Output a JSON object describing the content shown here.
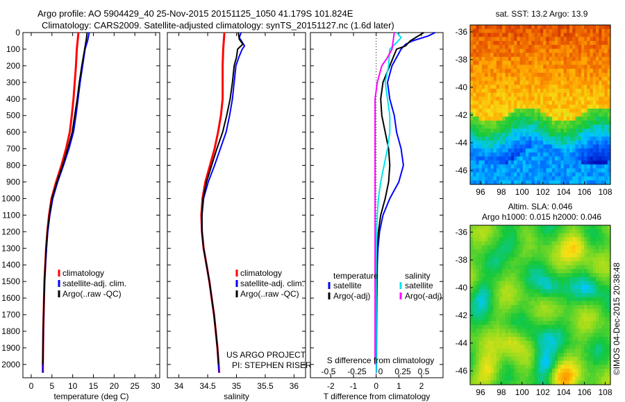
{
  "title": {
    "line1": "Argo profile: AO 5904429_40 25-Nov-2015 20151125_1050 41.179S 101.824E",
    "line2": "Climatology: CARS2009. Satellite-adjusted climatology: synTS_20151127.nc (1.6d later)"
  },
  "colors": {
    "red": "#ff0000",
    "blue": "#0000ff",
    "black": "#000000",
    "cyan": "#00e5ee",
    "magenta": "#ff00ff"
  },
  "chart_data": [
    {
      "type": "line",
      "panel": "temperature",
      "xlabel": "temperature (deg C)",
      "xlim": [
        -2,
        31
      ],
      "xticks": [
        0,
        5,
        10,
        15,
        20,
        25,
        30
      ],
      "ylim": [
        2080,
        0
      ],
      "yticks": [
        0,
        100,
        200,
        300,
        400,
        500,
        600,
        700,
        800,
        900,
        1000,
        1100,
        1200,
        1300,
        1400,
        1500,
        1600,
        1700,
        1800,
        1900,
        2000
      ],
      "legend": [
        "climatology",
        "satellite-adj. clim.",
        "Argo(..raw -QC)"
      ],
      "series": [
        {
          "name": "climatology",
          "color": "red",
          "points": [
            [
              11.4,
              0
            ],
            [
              11.2,
              50
            ],
            [
              11.0,
              100
            ],
            [
              10.8,
              200
            ],
            [
              10.5,
              300
            ],
            [
              10.2,
              400
            ],
            [
              9.8,
              500
            ],
            [
              9.3,
              600
            ],
            [
              8.4,
              700
            ],
            [
              7.3,
              800
            ],
            [
              6.0,
              900
            ],
            [
              4.9,
              1000
            ],
            [
              4.3,
              1100
            ],
            [
              3.9,
              1200
            ],
            [
              3.6,
              1300
            ],
            [
              3.4,
              1400
            ],
            [
              3.2,
              1500
            ],
            [
              3.1,
              1600
            ],
            [
              3.0,
              1700
            ],
            [
              2.9,
              1800
            ],
            [
              2.85,
              1900
            ],
            [
              2.8,
              2000
            ],
            [
              2.8,
              2050
            ]
          ]
        },
        {
          "name": "satellite-adj. clim.",
          "color": "blue",
          "points": [
            [
              14.0,
              0
            ],
            [
              13.6,
              50
            ],
            [
              13.0,
              100
            ],
            [
              12.4,
              200
            ],
            [
              11.8,
              300
            ],
            [
              11.3,
              400
            ],
            [
              10.8,
              500
            ],
            [
              10.2,
              600
            ],
            [
              9.1,
              700
            ],
            [
              7.8,
              800
            ],
            [
              6.4,
              900
            ],
            [
              5.2,
              1000
            ],
            [
              4.5,
              1100
            ],
            [
              4.0,
              1200
            ],
            [
              3.7,
              1300
            ],
            [
              3.45,
              1400
            ],
            [
              3.25,
              1500
            ],
            [
              3.1,
              1600
            ],
            [
              3.0,
              1700
            ],
            [
              2.9,
              1800
            ],
            [
              2.85,
              1900
            ],
            [
              2.8,
              2000
            ],
            [
              2.8,
              2050
            ]
          ]
        },
        {
          "name": "Argo(..raw -QC)",
          "color": "black",
          "points": [
            [
              13.5,
              0
            ],
            [
              13.3,
              40
            ],
            [
              12.9,
              100
            ],
            [
              12.2,
              200
            ],
            [
              11.6,
              300
            ],
            [
              11.1,
              400
            ],
            [
              10.5,
              500
            ],
            [
              9.9,
              600
            ],
            [
              8.8,
              700
            ],
            [
              7.6,
              800
            ],
            [
              6.2,
              900
            ],
            [
              5.0,
              1000
            ],
            [
              4.4,
              1100
            ],
            [
              3.9,
              1200
            ],
            [
              3.6,
              1300
            ],
            [
              3.4,
              1400
            ],
            [
              3.2,
              1500
            ],
            [
              3.1,
              1600
            ],
            [
              3.0,
              1700
            ],
            [
              2.9,
              1800
            ],
            [
              2.85,
              1900
            ],
            [
              2.8,
              2000
            ]
          ]
        }
      ]
    },
    {
      "type": "line",
      "panel": "salinity",
      "xlabel": "salinity",
      "xlim": [
        33.8,
        36.2
      ],
      "xticks": [
        34,
        34.5,
        35,
        35.5,
        36
      ],
      "ylim": [
        2080,
        0
      ],
      "legend": [
        "climatology",
        "satellite-adj. clim.",
        "Argo(..raw -QC)"
      ],
      "annotation": [
        "US ARGO PROJECT",
        "PI: STEPHEN RISER"
      ],
      "series": [
        {
          "name": "climatology",
          "color": "red",
          "points": [
            [
              34.79,
              0
            ],
            [
              34.78,
              50
            ],
            [
              34.77,
              100
            ],
            [
              34.76,
              200
            ],
            [
              34.76,
              300
            ],
            [
              34.76,
              400
            ],
            [
              34.73,
              500
            ],
            [
              34.68,
              600
            ],
            [
              34.62,
              700
            ],
            [
              34.54,
              800
            ],
            [
              34.46,
              900
            ],
            [
              34.41,
              1000
            ],
            [
              34.39,
              1100
            ],
            [
              34.4,
              1200
            ],
            [
              34.43,
              1300
            ],
            [
              34.48,
              1400
            ],
            [
              34.53,
              1500
            ],
            [
              34.57,
              1600
            ],
            [
              34.61,
              1700
            ],
            [
              34.64,
              1800
            ],
            [
              34.67,
              1900
            ],
            [
              34.69,
              2000
            ],
            [
              34.7,
              2050
            ]
          ]
        },
        {
          "name": "satellite-adj. clim.",
          "color": "blue",
          "points": [
            [
              35.08,
              0
            ],
            [
              35.05,
              30
            ],
            [
              35.14,
              80
            ],
            [
              35.1,
              100
            ],
            [
              35.04,
              150
            ],
            [
              34.99,
              200
            ],
            [
              34.96,
              300
            ],
            [
              34.93,
              400
            ],
            [
              34.88,
              500
            ],
            [
              34.82,
              600
            ],
            [
              34.72,
              700
            ],
            [
              34.62,
              800
            ],
            [
              34.51,
              900
            ],
            [
              34.43,
              1000
            ],
            [
              34.4,
              1100
            ],
            [
              34.4,
              1200
            ],
            [
              34.43,
              1300
            ],
            [
              34.48,
              1400
            ],
            [
              34.53,
              1500
            ],
            [
              34.57,
              1600
            ],
            [
              34.61,
              1700
            ],
            [
              34.64,
              1800
            ],
            [
              34.67,
              1900
            ],
            [
              34.69,
              2000
            ],
            [
              34.7,
              2050
            ]
          ]
        },
        {
          "name": "Argo(..raw -QC)",
          "color": "black",
          "points": [
            [
              35.03,
              0
            ],
            [
              35.05,
              40
            ],
            [
              35.11,
              70
            ],
            [
              35.02,
              100
            ],
            [
              35.0,
              150
            ],
            [
              34.96,
              200
            ],
            [
              34.93,
              300
            ],
            [
              34.89,
              400
            ],
            [
              34.83,
              500
            ],
            [
              34.76,
              600
            ],
            [
              34.66,
              700
            ],
            [
              34.57,
              800
            ],
            [
              34.48,
              900
            ],
            [
              34.42,
              1000
            ],
            [
              34.4,
              1100
            ],
            [
              34.4,
              1200
            ],
            [
              34.43,
              1300
            ],
            [
              34.48,
              1400
            ],
            [
              34.53,
              1500
            ],
            [
              34.57,
              1600
            ],
            [
              34.61,
              1700
            ],
            [
              34.64,
              1800
            ],
            [
              34.67,
              1900
            ],
            [
              34.69,
              2000
            ]
          ]
        }
      ]
    },
    {
      "type": "line",
      "panel": "difference",
      "xlabel": "T difference from climatology",
      "xlabel_top": "S difference from climatology",
      "xlim": [
        -2.9,
        2.95
      ],
      "xticks": [
        -2,
        -1,
        0,
        1,
        2
      ],
      "xticks_s": [
        -0.5,
        -0.25,
        0,
        0.25,
        0.5
      ],
      "ylim": [
        2080,
        0
      ],
      "legend": {
        "temperature": [
          "satellite",
          "Argo(-adj)"
        ],
        "salinity": [
          "satellite",
          "Argo(-adj)"
        ]
      },
      "legend_headers": [
        "temperature",
        "salinity"
      ],
      "series": [
        {
          "name": "temperature satellite",
          "color": "blue",
          "points": [
            [
              2.6,
              0
            ],
            [
              2.3,
              20
            ],
            [
              1.6,
              50
            ],
            [
              1.3,
              70
            ],
            [
              1.1,
              100
            ],
            [
              0.7,
              200
            ],
            [
              0.5,
              300
            ],
            [
              0.6,
              400
            ],
            [
              0.8,
              500
            ],
            [
              0.9,
              600
            ],
            [
              1.1,
              700
            ],
            [
              1.2,
              800
            ],
            [
              1.0,
              900
            ],
            [
              0.6,
              1000
            ],
            [
              0.3,
              1100
            ],
            [
              0.15,
              1200
            ],
            [
              0.08,
              1300
            ],
            [
              0.05,
              1400
            ],
            [
              0.03,
              1600
            ],
            [
              0.02,
              1800
            ],
            [
              0.01,
              2050
            ]
          ]
        },
        {
          "name": "temperature Argo(-adj)",
          "color": "black",
          "points": [
            [
              2.1,
              0
            ],
            [
              1.5,
              50
            ],
            [
              1.3,
              80
            ],
            [
              0.9,
              100
            ],
            [
              0.6,
              200
            ],
            [
              0.3,
              300
            ],
            [
              0.2,
              400
            ],
            [
              0.25,
              500
            ],
            [
              0.4,
              600
            ],
            [
              0.55,
              700
            ],
            [
              0.6,
              800
            ],
            [
              0.55,
              900
            ],
            [
              0.4,
              1000
            ],
            [
              0.2,
              1100
            ],
            [
              0.1,
              1200
            ],
            [
              0.05,
              1300
            ],
            [
              0.02,
              1500
            ],
            [
              0.0,
              1700
            ],
            [
              0.0,
              1900
            ],
            [
              0.0,
              2000
            ]
          ]
        },
        {
          "name": "salinity satellite",
          "color": "cyan",
          "points": [
            [
              0.9,
              0
            ],
            [
              1.1,
              30
            ],
            [
              0.9,
              60
            ],
            [
              0.6,
              100
            ],
            [
              0.55,
              200
            ],
            [
              0.4,
              300
            ],
            [
              0.5,
              400
            ],
            [
              0.6,
              500
            ],
            [
              0.6,
              600
            ],
            [
              0.5,
              700
            ],
            [
              0.35,
              800
            ],
            [
              0.2,
              900
            ],
            [
              0.1,
              1000
            ],
            [
              0.05,
              1100
            ],
            [
              0.02,
              1200
            ],
            [
              0.0,
              1400
            ],
            [
              0.0,
              1700
            ],
            [
              0.0,
              2050
            ]
          ]
        },
        {
          "name": "salinity Argo(-adj)",
          "color": "magenta",
          "points": [
            [
              0.8,
              0
            ],
            [
              0.7,
              100
            ],
            [
              0.5,
              150
            ],
            [
              0.25,
              200
            ],
            [
              0.05,
              300
            ],
            [
              -0.05,
              400
            ],
            [
              -0.05,
              600
            ],
            [
              -0.05,
              800
            ],
            [
              -0.05,
              1000
            ],
            [
              -0.05,
              1200
            ],
            [
              -0.05,
              1400
            ],
            [
              -0.05,
              1600
            ],
            [
              -0.05,
              1800
            ],
            [
              -0.05,
              2000
            ]
          ]
        }
      ]
    },
    {
      "type": "heatmap",
      "panel": "sst-map",
      "title": "sat. SST: 13.2  Argo: 13.9",
      "xlim": [
        95,
        108.5
      ],
      "xticks": [
        96,
        98,
        100,
        102,
        104,
        106,
        108
      ],
      "ylim": [
        -47,
        -35.5
      ],
      "yticks": [
        -36,
        -38,
        -40,
        -42,
        -44,
        -46
      ]
    },
    {
      "type": "heatmap",
      "panel": "sla-map",
      "title": [
        "Altim. SLA: 0.046",
        "Argo h1000: 0.015  h2000: 0.046"
      ],
      "xlim": [
        95,
        108.5
      ],
      "xticks": [
        96,
        98,
        100,
        102,
        104,
        106,
        108
      ],
      "ylim": [
        -47,
        -35.5
      ],
      "yticks": [
        -36,
        -38,
        -40,
        -42,
        -44,
        -46
      ]
    }
  ],
  "credit": "©IMOS 04-Dec-2015 20:38:48"
}
